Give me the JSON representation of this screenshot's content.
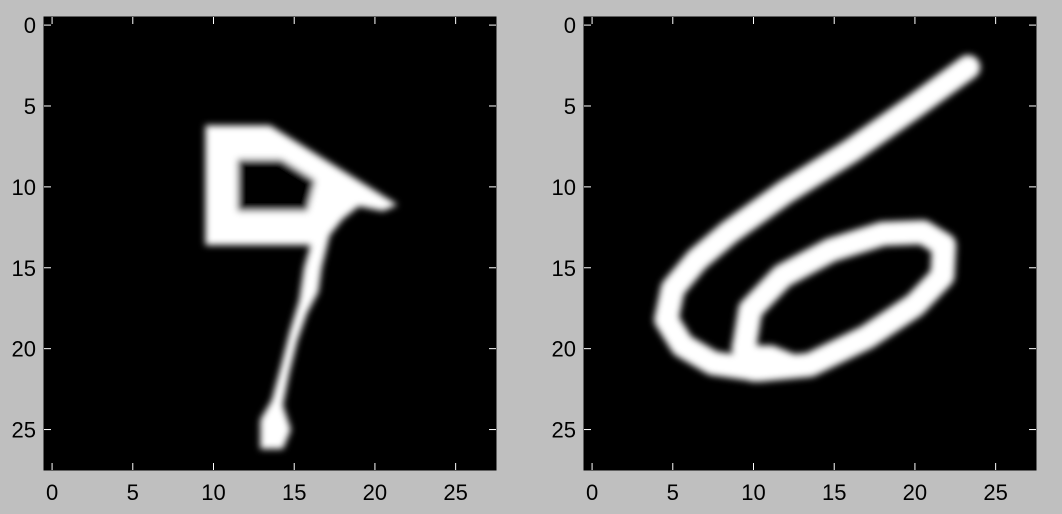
{
  "colors": {
    "figure_background": "#bfbfbf",
    "image_background": "#000000",
    "stroke": "#ffffff",
    "axes_frame": "#000000"
  },
  "chart_data": [
    {
      "type": "heatmap",
      "colormap": "gray",
      "content": "handwritten digit image (28x28 pixels)",
      "xlim": [
        0,
        27
      ],
      "ylim": [
        27,
        0
      ],
      "xticks": [
        0,
        5,
        10,
        15,
        20,
        25
      ],
      "yticks": [
        0,
        5,
        10,
        15,
        20,
        25
      ],
      "xtick_labels": [
        "0",
        "5",
        "10",
        "15",
        "20",
        "25"
      ],
      "ytick_labels": [
        "0",
        "5",
        "10",
        "15",
        "20",
        "25"
      ],
      "grid": false,
      "strokes": [
        {
          "kind": "polygon",
          "points": [
            [
              9.5,
              6.2
            ],
            [
              13.5,
              6.2
            ],
            [
              21.4,
              11.1
            ],
            [
              20.5,
              11.5
            ],
            [
              19.0,
              11.2
            ],
            [
              18.0,
              12.0
            ],
            [
              17.2,
              13.0
            ],
            [
              16.7,
              15.0
            ],
            [
              16.5,
              16.5
            ],
            [
              15.8,
              17.8
            ],
            [
              15.2,
              19.5
            ],
            [
              14.7,
              21.5
            ],
            [
              14.3,
              23.5
            ],
            [
              14.8,
              25.0
            ],
            [
              14.3,
              26.2
            ],
            [
              12.9,
              26.2
            ],
            [
              12.9,
              24.4
            ],
            [
              13.6,
              23.2
            ],
            [
              14.2,
              21.0
            ],
            [
              14.7,
              19.0
            ],
            [
              15.3,
              17.0
            ],
            [
              15.6,
              15.0
            ],
            [
              16.0,
              13.6
            ],
            [
              9.5,
              13.6
            ]
          ]
        },
        {
          "kind": "polygon_hole",
          "points": [
            [
              11.5,
              8.3
            ],
            [
              14.2,
              8.3
            ],
            [
              16.3,
              9.6
            ],
            [
              15.8,
              11.5
            ],
            [
              11.5,
              11.5
            ]
          ]
        }
      ]
    },
    {
      "type": "heatmap",
      "colormap": "gray",
      "content": "handwritten digit image (28x28 pixels)",
      "xlim": [
        0,
        27
      ],
      "ylim": [
        27,
        0
      ],
      "xticks": [
        0,
        5,
        10,
        15,
        20,
        25
      ],
      "yticks": [
        0,
        5,
        10,
        15,
        20,
        25
      ],
      "xtick_labels": [
        "0",
        "5",
        "10",
        "15",
        "20",
        "25"
      ],
      "ytick_labels": [
        "0",
        "5",
        "10",
        "15",
        "20",
        "25"
      ],
      "grid": false,
      "strokes": [
        {
          "kind": "polyline",
          "width": 1.5,
          "points": [
            [
              23.3,
              2.6
            ],
            [
              20.0,
              5.0
            ],
            [
              16.0,
              7.8
            ],
            [
              12.0,
              10.3
            ],
            [
              8.5,
              12.8
            ],
            [
              6.5,
              14.5
            ],
            [
              5.0,
              16.3
            ],
            [
              4.6,
              18.2
            ],
            [
              5.6,
              19.8
            ],
            [
              7.5,
              20.9
            ],
            [
              10.3,
              21.3
            ],
            [
              13.5,
              21.0
            ],
            [
              17.0,
              19.3
            ],
            [
              20.0,
              17.3
            ],
            [
              21.7,
              15.5
            ],
            [
              21.8,
              13.6
            ],
            [
              20.5,
              12.8
            ],
            [
              18.0,
              12.9
            ],
            [
              14.8,
              13.9
            ],
            [
              11.8,
              15.5
            ],
            [
              9.8,
              17.6
            ],
            [
              9.4,
              20.0
            ],
            [
              10.0,
              21.3
            ]
          ]
        },
        {
          "kind": "polygon",
          "points": [
            [
              8.6,
              19.8
            ],
            [
              11.2,
              19.8
            ],
            [
              12.7,
              20.4
            ],
            [
              12.2,
              21.6
            ],
            [
              9.2,
              21.6
            ]
          ]
        }
      ]
    }
  ]
}
